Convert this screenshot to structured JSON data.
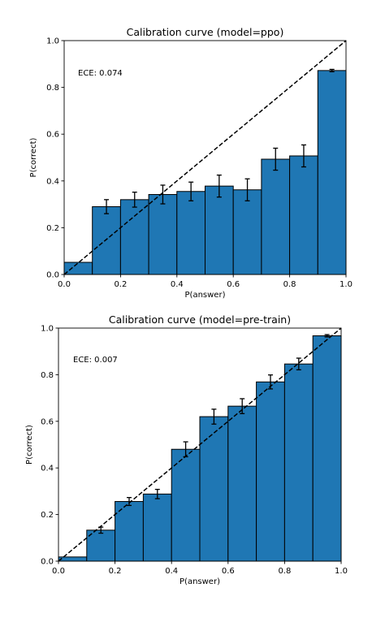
{
  "bar_color": "#1f77b4",
  "chart_data": [
    {
      "type": "bar",
      "title": "Calibration curve (model=ppo)",
      "xlabel": "P(answer)",
      "ylabel": "P(correct)",
      "xlim": [
        0.0,
        1.0
      ],
      "ylim": [
        0.0,
        1.0
      ],
      "xticks": [
        "0.0",
        "0.2",
        "0.4",
        "0.6",
        "0.8",
        "1.0"
      ],
      "yticks": [
        "0.0",
        "0.2",
        "0.4",
        "0.6",
        "0.8",
        "1.0"
      ],
      "annotation": "ECE: 0.074",
      "bin_edges": [
        0.0,
        0.1,
        0.2,
        0.3,
        0.4,
        0.5,
        0.6,
        0.7,
        0.8,
        0.9,
        1.0
      ],
      "values": [
        0.052,
        0.29,
        0.32,
        0.342,
        0.355,
        0.378,
        0.362,
        0.493,
        0.507,
        0.872
      ],
      "errors": [
        null,
        0.03,
        0.032,
        0.04,
        0.04,
        0.047,
        0.047,
        0.047,
        0.047,
        0.005
      ],
      "reference_line": "diagonal dashed",
      "grid": false
    },
    {
      "type": "bar",
      "title": "Calibration curve (model=pre-train)",
      "xlabel": "P(answer)",
      "ylabel": "P(correct)",
      "xlim": [
        0.0,
        1.0
      ],
      "ylim": [
        0.0,
        1.0
      ],
      "xticks": [
        "0.0",
        "0.2",
        "0.4",
        "0.6",
        "0.8",
        "1.0"
      ],
      "yticks": [
        "0.0",
        "0.2",
        "0.4",
        "0.6",
        "0.8",
        "1.0"
      ],
      "annotation": "ECE: 0.007",
      "bin_edges": [
        0.0,
        0.1,
        0.2,
        0.3,
        0.4,
        0.5,
        0.6,
        0.7,
        0.8,
        0.9,
        1.0
      ],
      "values": [
        0.018,
        0.133,
        0.256,
        0.288,
        0.48,
        0.62,
        0.665,
        0.769,
        0.846,
        0.967
      ],
      "errors": [
        null,
        0.013,
        0.017,
        0.02,
        0.032,
        0.032,
        0.032,
        0.03,
        0.025,
        0.005
      ],
      "reference_line": "diagonal dashed",
      "grid": false
    }
  ]
}
